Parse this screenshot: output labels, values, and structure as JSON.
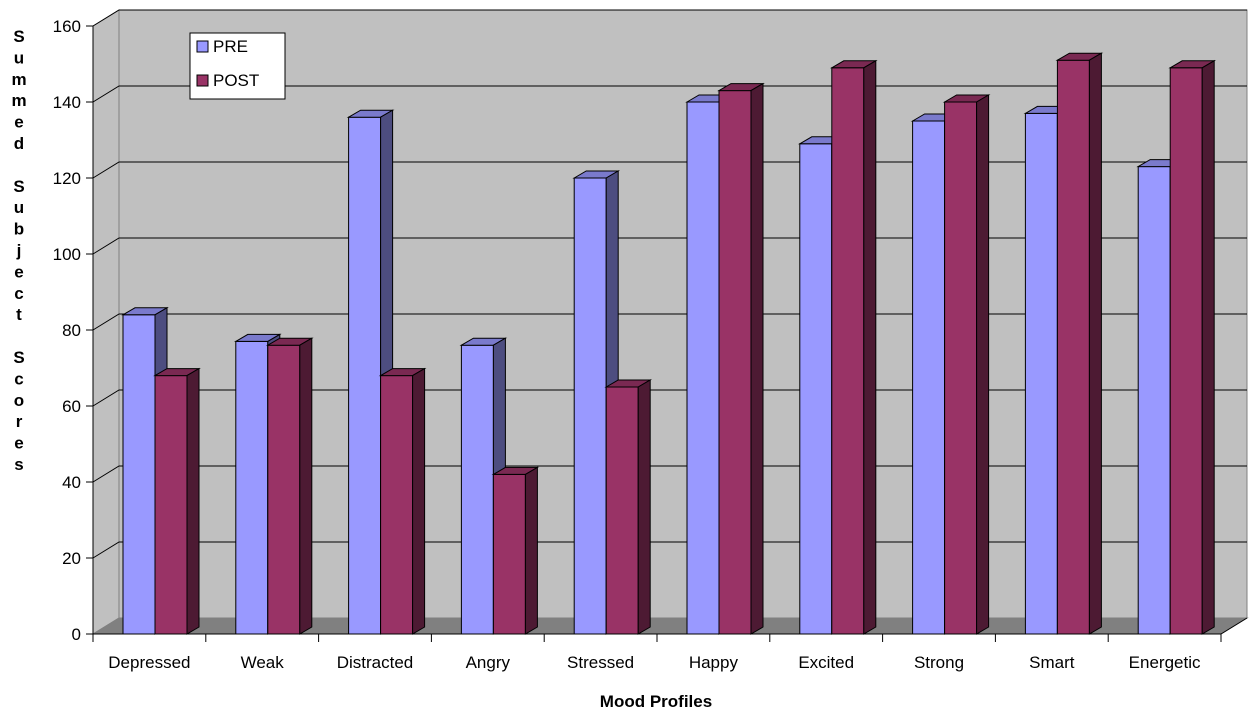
{
  "chart_data": {
    "type": "bar",
    "title": "",
    "xlabel": "Mood Profiles",
    "ylabel": "Summed Subject Scores",
    "ylim": [
      0,
      160
    ],
    "yticks": [
      0,
      20,
      40,
      60,
      80,
      100,
      120,
      140,
      160
    ],
    "categories": [
      "Depressed",
      "Weak",
      "Distracted",
      "Angry",
      "Stressed",
      "Happy",
      "Excited",
      "Strong",
      "Smart",
      "Energetic"
    ],
    "series": [
      {
        "name": "PRE",
        "color": "#9999ff",
        "values": [
          84,
          77,
          136,
          76,
          120,
          140,
          129,
          135,
          137,
          123
        ]
      },
      {
        "name": "POST",
        "color": "#993366",
        "values": [
          68,
          76,
          68,
          42,
          65,
          143,
          149,
          140,
          151,
          149
        ]
      }
    ],
    "grid": true,
    "legend_position": "top-left",
    "style": "3d-clustered-column"
  }
}
